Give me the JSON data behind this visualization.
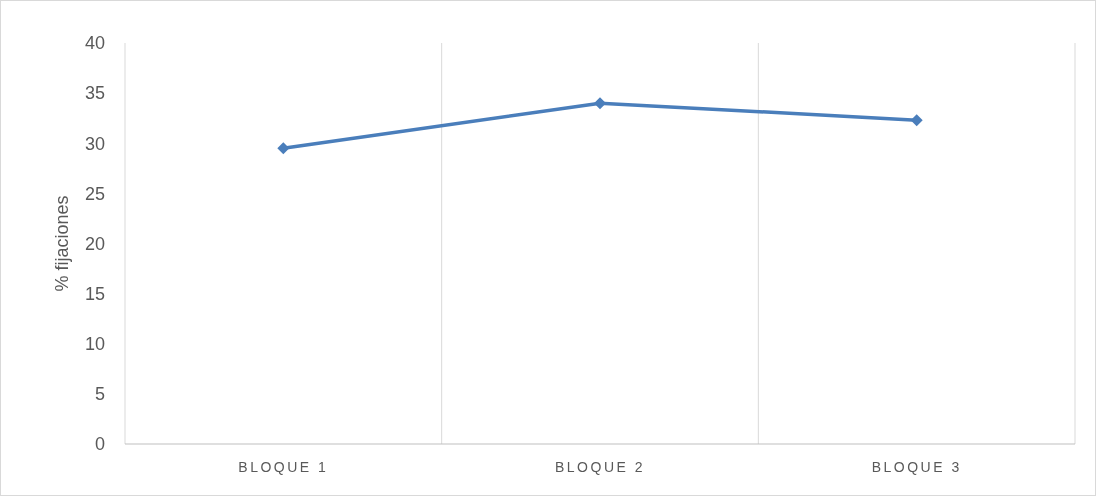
{
  "chart_data": {
    "type": "line",
    "ylabel": "% fijaciones",
    "categories": [
      "BLOQUE 1",
      "BLOQUE 2",
      "BLOQUE 3"
    ],
    "series": [
      {
        "color": "#4a7ebb",
        "values": [
          29.5,
          34.0,
          32.3
        ]
      }
    ],
    "ylim": [
      0,
      40
    ],
    "yticks": [
      0,
      5,
      10,
      15,
      20,
      25,
      30,
      35,
      40
    ],
    "grid": "x",
    "marker": "diamond",
    "line_style": "solid"
  }
}
